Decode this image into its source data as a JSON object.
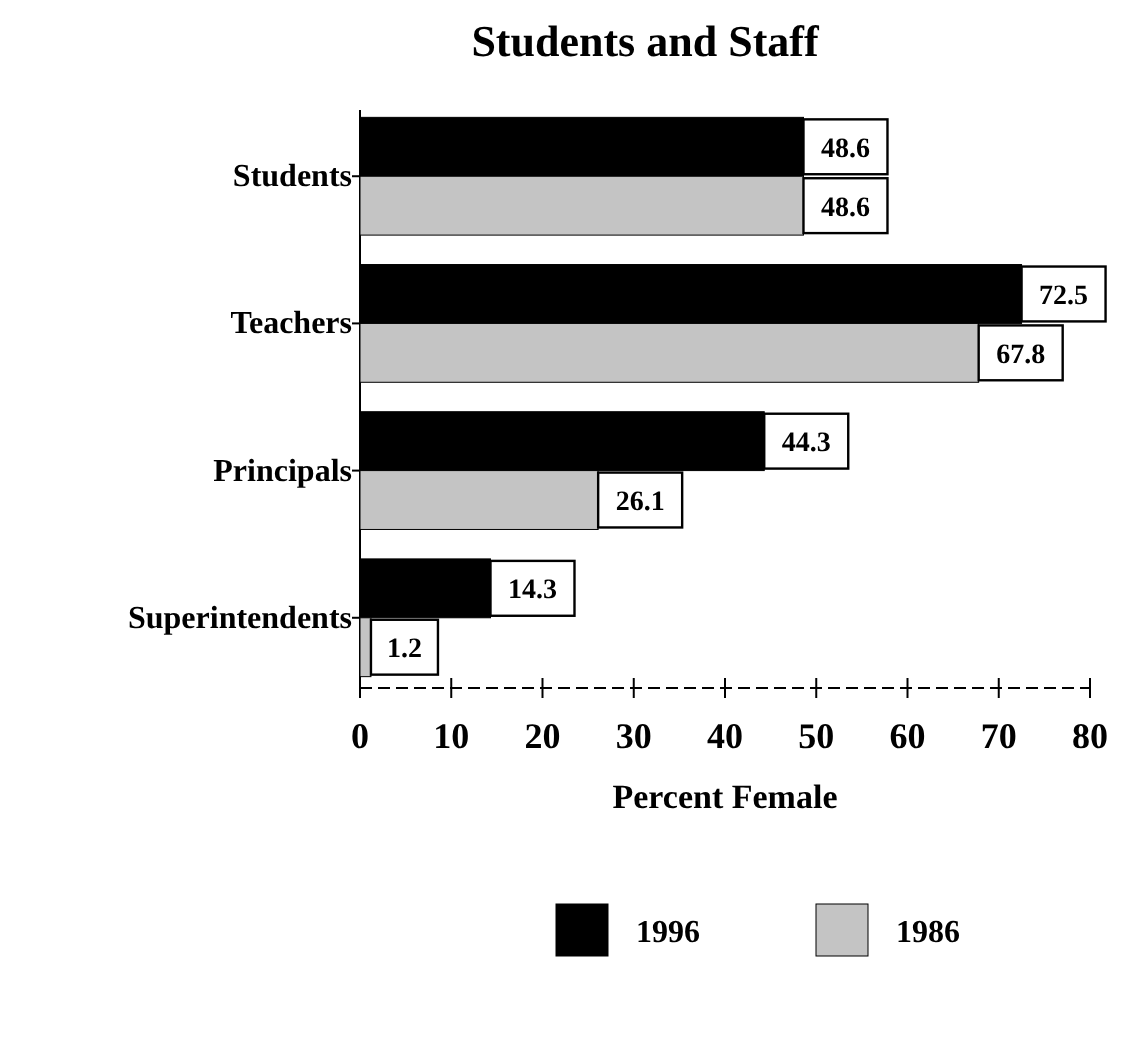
{
  "chart_data": {
    "type": "bar",
    "orientation": "horizontal",
    "title": "Students and Staff",
    "xlabel": "Percent Female",
    "categories": [
      "Students",
      "Teachers",
      "Principals",
      "Superintendents"
    ],
    "series": [
      {
        "name": "1996",
        "color": "#000000",
        "values": [
          48.6,
          72.5,
          44.3,
          14.3
        ]
      },
      {
        "name": "1986",
        "color": "#c4c4c4",
        "values": [
          48.6,
          67.8,
          26.1,
          1.2
        ]
      }
    ],
    "xlim": [
      0,
      80
    ],
    "xticks": [
      0,
      10,
      20,
      30,
      40,
      50,
      60,
      70,
      80
    ],
    "data_labels": true,
    "legend": "bottom",
    "grid": false
  }
}
